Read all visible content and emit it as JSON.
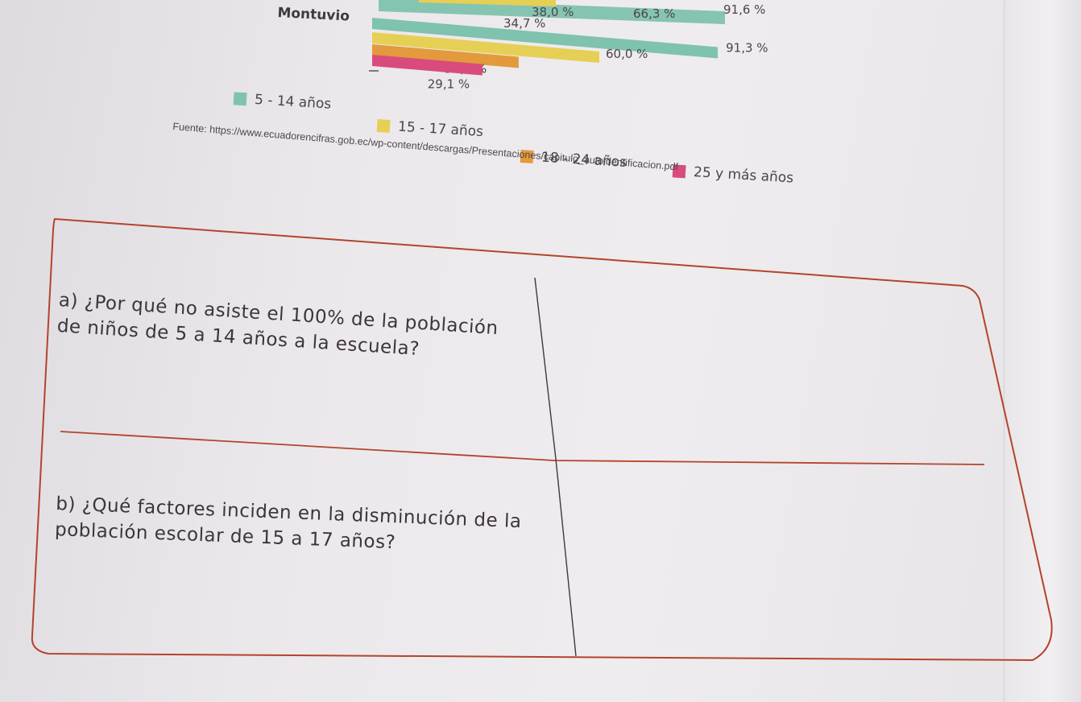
{
  "colors": {
    "band_5_14": "#7fc2ae",
    "band_15_17": "#e6cf55",
    "band_18_24": "#e39a3c",
    "band_25_plus": "#d94b7c",
    "table_line": "#b3442a"
  },
  "chart": {
    "partial_top_values": [
      "38,0 %",
      "66,3 %",
      "91,6 %",
      "34,7 %"
    ],
    "group_label": "Montuvio"
  },
  "chart_data": {
    "type": "bar",
    "orientation": "horizontal",
    "categories": [
      "Montuvio"
    ],
    "series": [
      {
        "name": "5 - 14 años",
        "values": [
          91.3
        ]
      },
      {
        "name": "15 - 17 años",
        "values": [
          60.0
        ]
      },
      {
        "name": "18 - 24 años",
        "values": [
          38.7
        ]
      },
      {
        "name": "25 y más años",
        "values": [
          29.1
        ]
      }
    ],
    "value_labels": [
      "91,3 %",
      "60,0 %",
      "38,7 %",
      "29,1 %"
    ],
    "legend_position": "bottom"
  },
  "legend": [
    {
      "label": "5 - 14 años",
      "color": "#7fc2ae"
    },
    {
      "label": "15 - 17 años",
      "color": "#e6cf55"
    },
    {
      "label": "18 - 24 años",
      "color": "#e39a3c"
    },
    {
      "label": "25 y más años",
      "color": "#d94b7c"
    }
  ],
  "source": "Fuente: https://www.ecuadorencifras.gob.ec/wp-content/descargas/Presentaciones/capitulo_autoidentificacion.pdf",
  "questions": {
    "a": "a) ¿Por qué no asiste el 100% de la población de niños de 5 a 14 años a la escuela?",
    "b": "b) ¿Qué factores inciden en la disminución de la población escolar de 15 a 17 años?"
  },
  "answers": {
    "a": "",
    "b": ""
  }
}
